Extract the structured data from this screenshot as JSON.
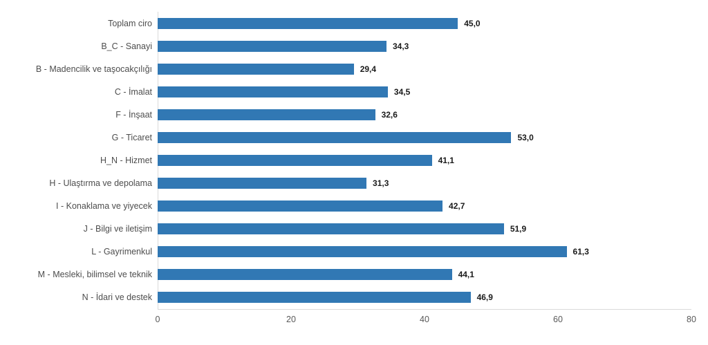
{
  "chart_data": {
    "type": "bar",
    "orientation": "horizontal",
    "title": "",
    "xlabel": "",
    "ylabel": "",
    "categories": [
      "Toplam ciro",
      "B_C - Sanayi",
      "B - Madencilik ve taşocakçılığı",
      "C - İmalat",
      "F - İnşaat",
      "G - Ticaret",
      "H_N - Hizmet",
      "H - Ulaştırma ve depolama",
      "I - Konaklama ve yiyecek",
      "J - Bilgi ve iletişim",
      "L - Gayrimenkul",
      "M - Mesleki, bilimsel ve teknik",
      "N - İdari ve destek"
    ],
    "values": [
      45.0,
      34.3,
      29.4,
      34.5,
      32.6,
      53.0,
      41.1,
      31.3,
      42.7,
      51.9,
      61.3,
      44.1,
      46.9
    ],
    "value_labels": [
      "45,0",
      "34,3",
      "29,4",
      "34,5",
      "32,6",
      "53,0",
      "41,1",
      "31,3",
      "42,7",
      "51,9",
      "61,3",
      "44,1",
      "46,9"
    ],
    "xlim": [
      0,
      80
    ],
    "x_ticks": [
      "0",
      "20",
      "40",
      "60",
      "80"
    ],
    "grid": false,
    "legend": "none",
    "colors": {
      "bar": "#3178B4",
      "axis_line": "#D9D9D9",
      "category_label": "#4D4D4D",
      "tick_label": "#595959",
      "value_label": "#1A1A1A",
      "background": "#FFFFFF"
    }
  }
}
